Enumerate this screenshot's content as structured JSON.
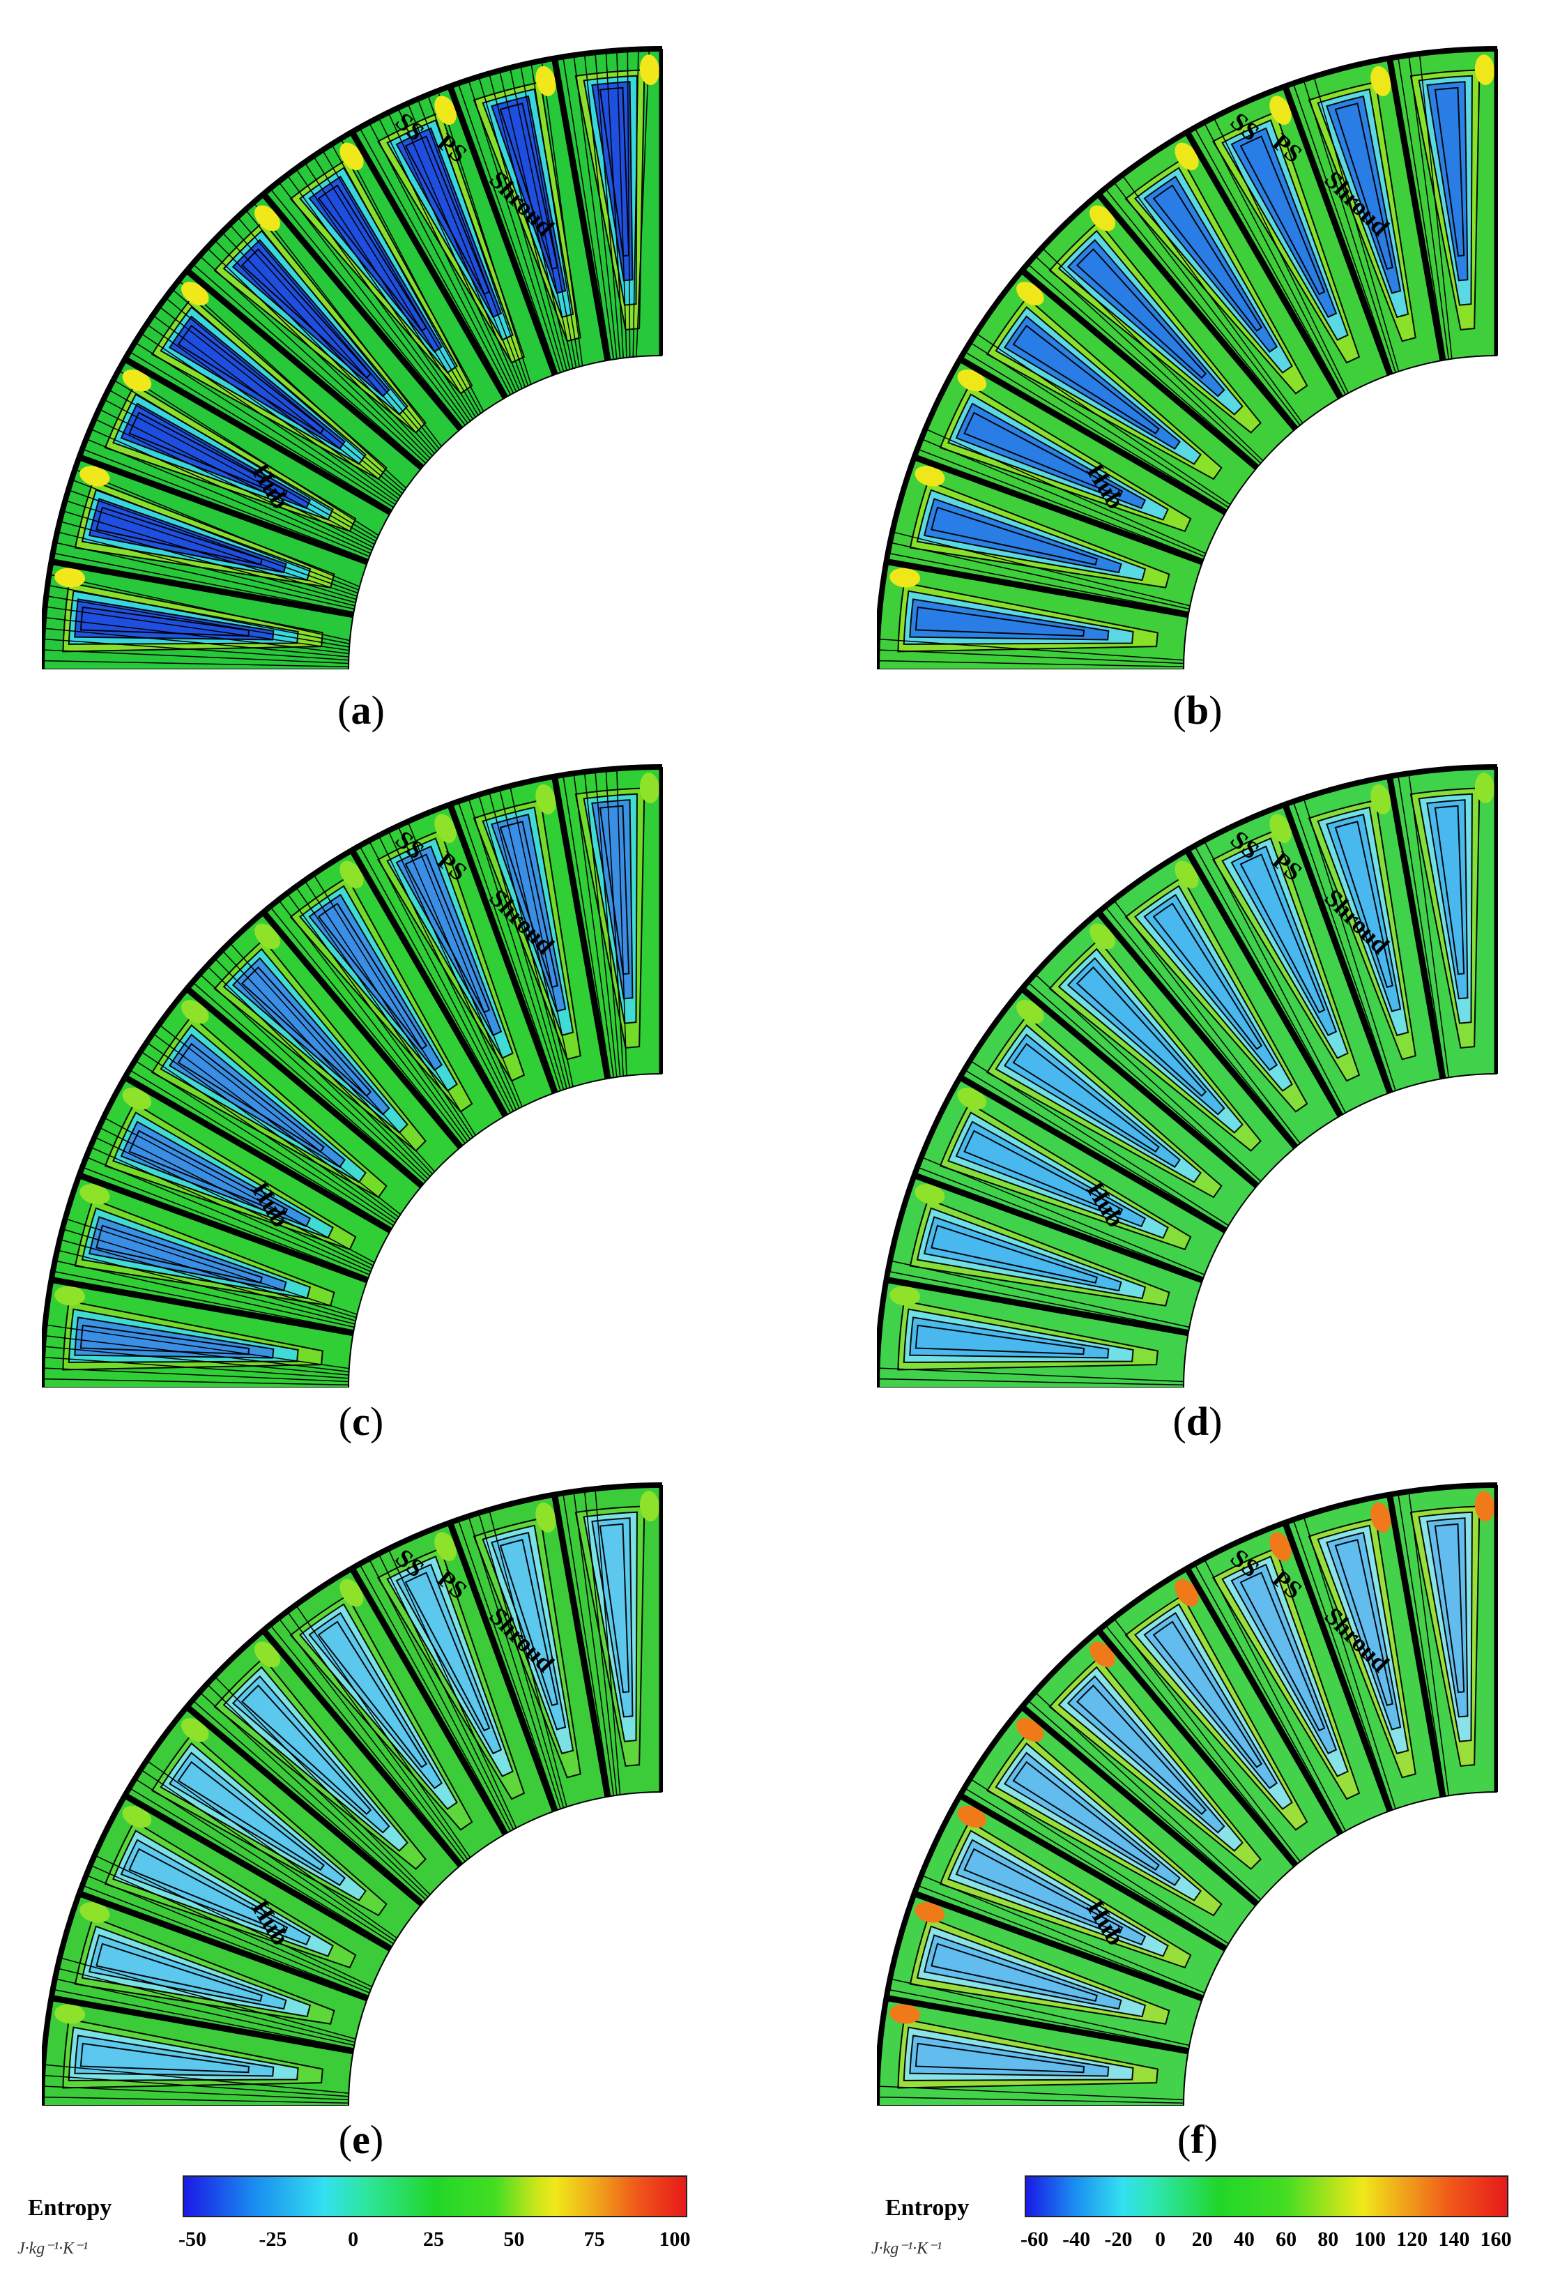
{
  "panels": [
    {
      "id": "a",
      "caption": "a",
      "ss": "SS",
      "ps": "PS",
      "shroud": "Shroud",
      "hub": "Hub",
      "palette": "a"
    },
    {
      "id": "b",
      "caption": "b",
      "ss": "SS",
      "ps": "PS",
      "shroud": "Shroud",
      "hub": "Hub",
      "palette": "b"
    },
    {
      "id": "c",
      "caption": "c",
      "ss": "SS",
      "ps": "PS",
      "shroud": "Shroud",
      "hub": "Hub",
      "palette": "c"
    },
    {
      "id": "d",
      "caption": "d",
      "ss": "SS",
      "ps": "PS",
      "shroud": "Shroud",
      "hub": "Hub",
      "palette": "d"
    },
    {
      "id": "e",
      "caption": "e",
      "ss": "SS",
      "ps": "PS",
      "shroud": "Shroud",
      "hub": "Hub",
      "palette": "e"
    },
    {
      "id": "f",
      "caption": "f",
      "ss": "SS",
      "ps": "PS",
      "shroud": "Shroud",
      "hub": "Hub",
      "palette": "f"
    }
  ],
  "colorbars": [
    {
      "title": "Entropy",
      "unit": "J·kg⁻¹·K⁻¹",
      "ticks": [
        "-50",
        "-25",
        "0",
        "25",
        "50",
        "75",
        "100"
      ]
    },
    {
      "title": "Entropy",
      "unit": "J·kg⁻¹·K⁻¹",
      "ticks": [
        "-60",
        "-40",
        "-20",
        "0",
        "20",
        "40",
        "60",
        "80",
        "100",
        "120",
        "140",
        "160"
      ]
    }
  ],
  "colors": {
    "blue": "#1a33e6",
    "cyan": "#33d9f0",
    "green": "#22cc22",
    "lightgreen": "#66dd44",
    "yellow": "#f0e81a",
    "orange": "#f07a1a",
    "red": "#e61a1a",
    "blade": "#000000"
  }
}
